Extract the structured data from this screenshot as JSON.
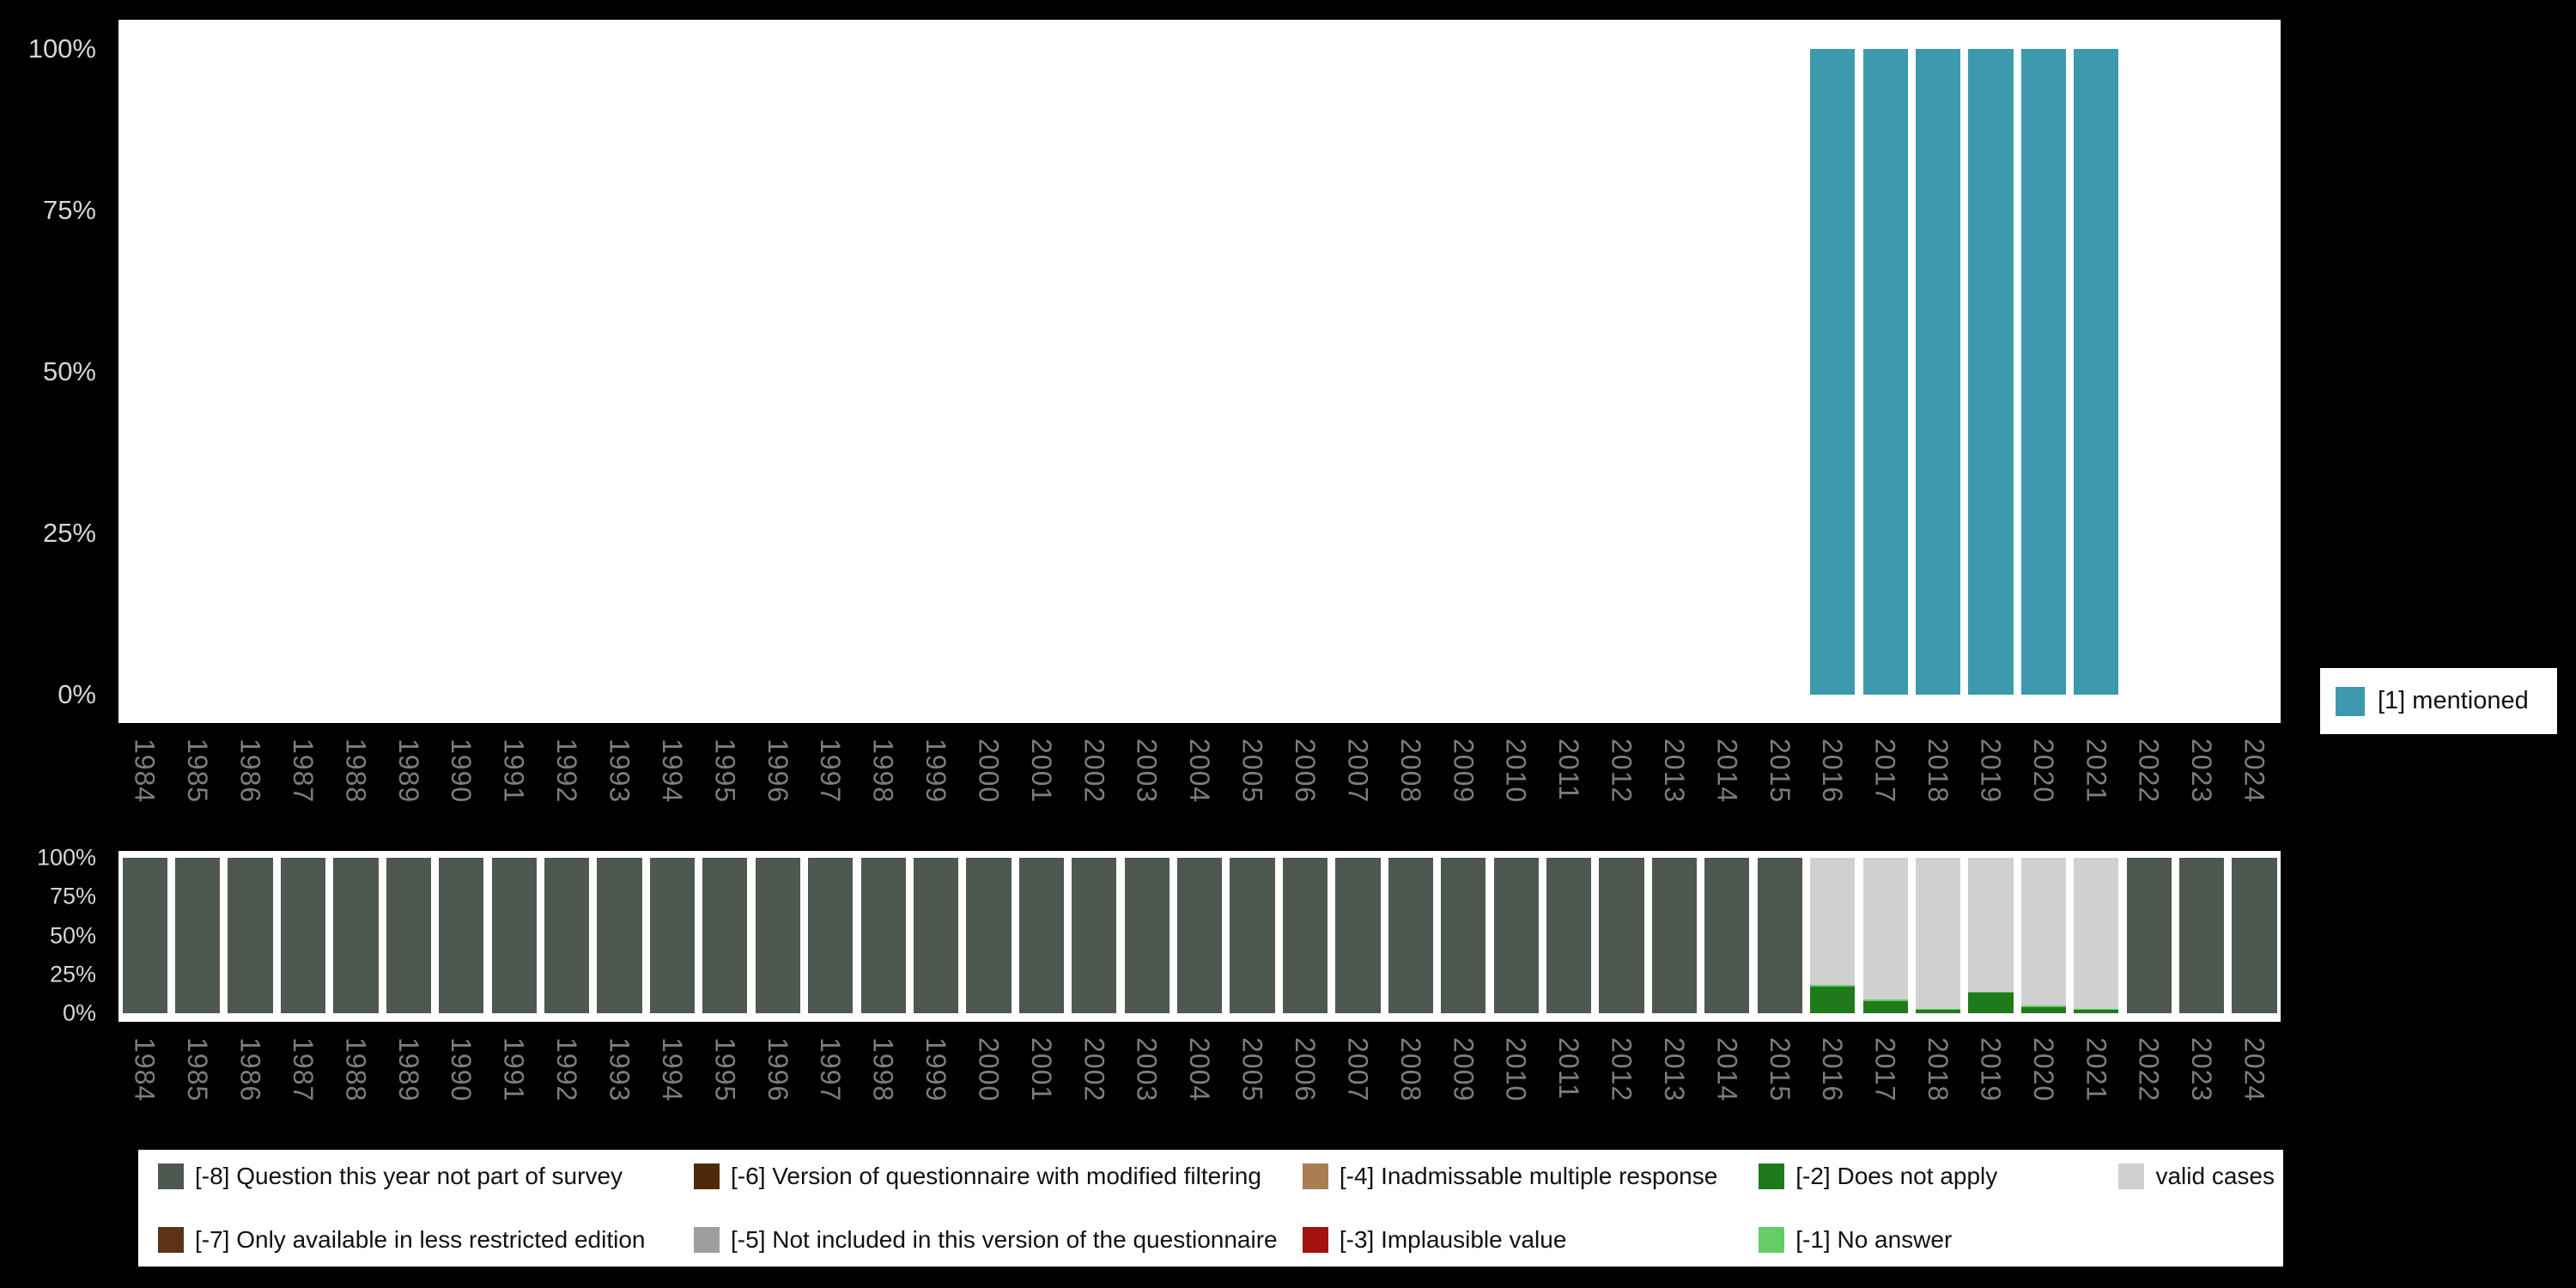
{
  "page": {
    "background": "#000000",
    "panel_background": "#ffffff",
    "ytick_color": "#d6d6d6",
    "year_label_color": "#7d7d7d"
  },
  "chart_data": [
    {
      "type": "bar",
      "title": "",
      "xlabel": "",
      "ylabel": "",
      "ylim": [
        0,
        100
      ],
      "yticks": [
        "100%",
        "75%",
        "50%",
        "25%",
        "0%"
      ],
      "grid": false,
      "legend_position": "right",
      "x": [
        1984,
        1985,
        1986,
        1987,
        1988,
        1989,
        1990,
        1991,
        1992,
        1993,
        1994,
        1995,
        1996,
        1997,
        1998,
        1999,
        2000,
        2001,
        2002,
        2003,
        2004,
        2005,
        2006,
        2007,
        2008,
        2009,
        2010,
        2011,
        2012,
        2013,
        2014,
        2015,
        2016,
        2017,
        2018,
        2019,
        2020,
        2021,
        2022,
        2023,
        2024
      ],
      "series": [
        {
          "name": "[1] mentioned",
          "color": "#3d99ae",
          "values": [
            0,
            0,
            0,
            0,
            0,
            0,
            0,
            0,
            0,
            0,
            0,
            0,
            0,
            0,
            0,
            0,
            0,
            0,
            0,
            0,
            0,
            0,
            0,
            0,
            0,
            0,
            0,
            0,
            0,
            0,
            0,
            0,
            100,
            100,
            100,
            100,
            100,
            100,
            0,
            0,
            0
          ]
        }
      ]
    },
    {
      "type": "stacked-bar",
      "title": "",
      "xlabel": "",
      "ylabel": "",
      "ylim": [
        0,
        100
      ],
      "yticks": [
        "100%",
        "75%",
        "50%",
        "25%",
        "0%"
      ],
      "grid": false,
      "legend_position": "bottom",
      "x": [
        1984,
        1985,
        1986,
        1987,
        1988,
        1989,
        1990,
        1991,
        1992,
        1993,
        1994,
        1995,
        1996,
        1997,
        1998,
        1999,
        2000,
        2001,
        2002,
        2003,
        2004,
        2005,
        2006,
        2007,
        2008,
        2009,
        2010,
        2011,
        2012,
        2013,
        2014,
        2015,
        2016,
        2017,
        2018,
        2019,
        2020,
        2021,
        2022,
        2023,
        2024
      ],
      "series": [
        {
          "name": "[-8] Question this year not part of survey",
          "color": "#4e5851",
          "values": [
            100,
            100,
            100,
            100,
            100,
            100,
            100,
            100,
            100,
            100,
            100,
            100,
            100,
            100,
            100,
            100,
            100,
            100,
            100,
            100,
            100,
            100,
            100,
            100,
            100,
            100,
            100,
            100,
            100,
            100,
            100,
            100,
            0,
            0,
            0,
            0,
            0,
            0,
            100,
            100,
            100
          ]
        },
        {
          "name": "[-7] Only available in less restricted edition",
          "color": "#5c3317",
          "values": [
            0,
            0,
            0,
            0,
            0,
            0,
            0,
            0,
            0,
            0,
            0,
            0,
            0,
            0,
            0,
            0,
            0,
            0,
            0,
            0,
            0,
            0,
            0,
            0,
            0,
            0,
            0,
            0,
            0,
            0,
            0,
            0,
            0,
            0,
            0,
            0,
            0,
            0,
            0,
            0,
            0
          ]
        },
        {
          "name": "[-6] Version of questionnaire with modified filtering",
          "color": "#4e2a0a",
          "values": [
            0,
            0,
            0,
            0,
            0,
            0,
            0,
            0,
            0,
            0,
            0,
            0,
            0,
            0,
            0,
            0,
            0,
            0,
            0,
            0,
            0,
            0,
            0,
            0,
            0,
            0,
            0,
            0,
            0,
            0,
            0,
            0,
            0,
            0,
            0,
            0,
            0,
            0,
            0,
            0,
            0
          ]
        },
        {
          "name": "[-5] Not included in this version of the questionnaire",
          "color": "#9e9e9e",
          "values": [
            0,
            0,
            0,
            0,
            0,
            0,
            0,
            0,
            0,
            0,
            0,
            0,
            0,
            0,
            0,
            0,
            0,
            0,
            0,
            0,
            0,
            0,
            0,
            0,
            0,
            0,
            0,
            0,
            0,
            0,
            0,
            0,
            0,
            0,
            0,
            0,
            0,
            0,
            0,
            0,
            0
          ]
        },
        {
          "name": "[-4] Inadmissable multiple response",
          "color": "#a97e51",
          "values": [
            0,
            0,
            0,
            0,
            0,
            0,
            0,
            0,
            0,
            0,
            0,
            0,
            0,
            0,
            0,
            0,
            0,
            0,
            0,
            0,
            0,
            0,
            0,
            0,
            0,
            0,
            0,
            0,
            0,
            0,
            0,
            0,
            0,
            0,
            0,
            0,
            0,
            0,
            0,
            0,
            0
          ]
        },
        {
          "name": "[-3] Implausible value",
          "color": "#a31111",
          "values": [
            0,
            0,
            0,
            0,
            0,
            0,
            0,
            0,
            0,
            0,
            0,
            0,
            0,
            0,
            0,
            0,
            0,
            0,
            0,
            0,
            0,
            0,
            0,
            0,
            0,
            0,
            0,
            0,
            0,
            0,
            0,
            0,
            0,
            0,
            0,
            0,
            0,
            0,
            0,
            0,
            0
          ]
        },
        {
          "name": "[-2] Does not apply",
          "color": "#1f7a1c",
          "values": [
            0,
            0,
            0,
            0,
            0,
            0,
            0,
            0,
            0,
            0,
            0,
            0,
            0,
            0,
            0,
            0,
            0,
            0,
            0,
            0,
            0,
            0,
            0,
            0,
            0,
            0,
            0,
            0,
            0,
            0,
            0,
            0,
            17,
            8,
            2,
            13,
            4,
            2,
            0,
            0,
            0
          ]
        },
        {
          "name": "[-1] No answer",
          "color": "#66cc66",
          "values": [
            0,
            0,
            0,
            0,
            0,
            0,
            0,
            0,
            0,
            0,
            0,
            0,
            0,
            0,
            0,
            0,
            0,
            0,
            0,
            0,
            0,
            0,
            0,
            0,
            0,
            0,
            0,
            0,
            0,
            0,
            0,
            0,
            1,
            1,
            1,
            1,
            1,
            1,
            0,
            0,
            0
          ]
        },
        {
          "name": "valid cases",
          "color": "#d0d0d0",
          "values": [
            0,
            0,
            0,
            0,
            0,
            0,
            0,
            0,
            0,
            0,
            0,
            0,
            0,
            0,
            0,
            0,
            0,
            0,
            0,
            0,
            0,
            0,
            0,
            0,
            0,
            0,
            0,
            0,
            0,
            0,
            0,
            0,
            82,
            91,
            97,
            86,
            95,
            97,
            0,
            0,
            0
          ]
        }
      ]
    }
  ],
  "legend_right": {
    "items": [
      {
        "label": "[1] mentioned",
        "color": "#3d99ae"
      }
    ]
  },
  "legend_bottom": {
    "items": [
      {
        "label": "[-8] Question this year not part of survey",
        "color": "#4e5851"
      },
      {
        "label": "[-7] Only available in less restricted edition",
        "color": "#5c3317"
      },
      {
        "label": "[-6] Version of questionnaire with modified filtering",
        "color": "#4e2a0a"
      },
      {
        "label": "[-5] Not included in this version of the questionnaire",
        "color": "#9e9e9e"
      },
      {
        "label": "[-4] Inadmissable multiple response",
        "color": "#a97e51"
      },
      {
        "label": "[-3] Implausible value",
        "color": "#a31111"
      },
      {
        "label": "[-2] Does not apply",
        "color": "#1f7a1c"
      },
      {
        "label": "[-1] No answer",
        "color": "#66cc66"
      },
      {
        "label": "valid cases",
        "color": "#d0d0d0"
      }
    ]
  }
}
